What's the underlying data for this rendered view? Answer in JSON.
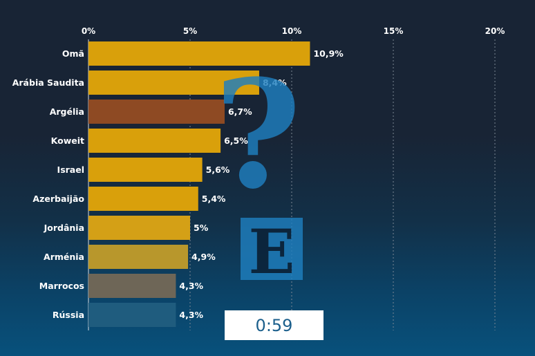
{
  "chart_data": {
    "type": "bar",
    "orientation": "horizontal",
    "categories": [
      "Omã",
      "Arábia Saudita",
      "Argélia",
      "Koweit",
      "Israel",
      "Azerbaijão",
      "Jordânia",
      "Arménia",
      "Marrocos",
      "Rússia"
    ],
    "values": [
      10.9,
      8.4,
      6.7,
      6.5,
      5.6,
      5.4,
      5,
      4.9,
      4.3,
      4.3
    ],
    "value_labels": [
      "10,9%",
      "8,4%",
      "6,7%",
      "6,5%",
      "5,6%",
      "5,4%",
      "5%",
      "4,9%",
      "4,3%",
      "4,3%"
    ],
    "x_ticks": [
      0,
      5,
      10,
      15,
      20
    ],
    "x_tick_labels": [
      "0%",
      "5%",
      "10%",
      "15%",
      "20%"
    ],
    "xlim": [
      0,
      20
    ],
    "grid": true,
    "axis_position": "top",
    "bar_colors": [
      "#d9a00b",
      "#d9a00b",
      "#8e4a23",
      "#d9a00b",
      "#d9a00b",
      "#d9a00b",
      "#d4a016",
      "#b8972c",
      "#6e6657",
      "#1f5c7e"
    ],
    "label_colors": [
      "#ffffff",
      "#ffffff",
      "#ffffff",
      "#ffffff",
      "#ffffff",
      "#ffffff",
      "#ffffff",
      "#d6dde3",
      "#9fb2c2",
      "#7895ad"
    ]
  },
  "overlay": {
    "timer": "0:59",
    "logo_letter": "E",
    "question_glyph": "?",
    "logo_color": "#1f7fbf"
  }
}
